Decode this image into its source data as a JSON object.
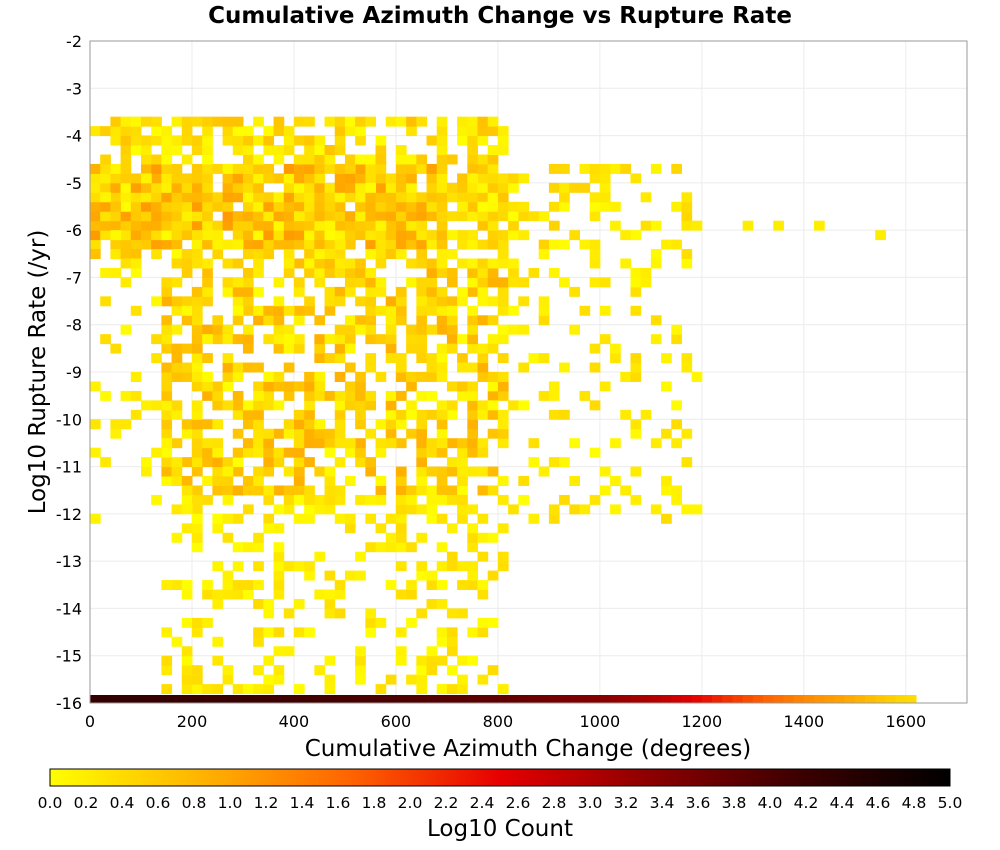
{
  "chart_data": {
    "type": "heatmap",
    "title": "Cumulative Azimuth Change vs Rupture Rate",
    "xlabel": "Cumulative Azimuth Change (degrees)",
    "ylabel": "Log10 Rupture Rate (/yr)",
    "xlim": [
      0,
      1720
    ],
    "ylim": [
      -16,
      -2
    ],
    "xticks": [
      0,
      200,
      400,
      600,
      800,
      1000,
      1200,
      1400,
      1600
    ],
    "yticks": [
      -2,
      -3,
      -4,
      -5,
      -6,
      -7,
      -8,
      -9,
      -10,
      -11,
      -12,
      -13,
      -14,
      -15,
      -16
    ],
    "grid": true,
    "x_bin_width": 20,
    "y_bin_height": 0.2,
    "colorbar": {
      "label": "Log10 Count",
      "range": [
        0,
        5
      ],
      "ticks": [
        "0.0",
        "0.2",
        "0.4",
        "0.6",
        "0.8",
        "1.0",
        "1.2",
        "1.4",
        "1.6",
        "1.8",
        "2.0",
        "2.2",
        "2.4",
        "2.6",
        "2.8",
        "3.0",
        "3.2",
        "3.4",
        "3.6",
        "3.8",
        "4.0",
        "4.2",
        "4.4",
        "4.6",
        "4.8",
        "5.0"
      ],
      "colors": [
        "#ffff00",
        "#ffb400",
        "#ff6400",
        "#e60000",
        "#8c0000",
        "#3c0000",
        "#000000"
      ]
    },
    "bottom_row": {
      "y": -16,
      "x_start": 0,
      "x_end": 1620,
      "profile": [
        [
          0,
          4.3
        ],
        [
          300,
          4.2
        ],
        [
          600,
          4.0
        ],
        [
          800,
          3.8
        ],
        [
          1000,
          3.4
        ],
        [
          1100,
          3.0
        ],
        [
          1200,
          2.4
        ],
        [
          1300,
          1.8
        ],
        [
          1400,
          1.3
        ],
        [
          1500,
          0.9
        ],
        [
          1600,
          0.4
        ]
      ]
    },
    "density_regions": [
      {
        "x_range": [
          0,
          700
        ],
        "y_range": [
          -6.4,
          -4.6
        ],
        "peak": 1.1,
        "fill": 0.85
      },
      {
        "x_range": [
          0,
          820
        ],
        "y_range": [
          -6.6,
          -3.6
        ],
        "peak": 0.7,
        "fill": 0.6
      },
      {
        "x_range": [
          700,
          1180
        ],
        "y_range": [
          -6.4,
          -4.6
        ],
        "peak": 0.5,
        "fill": 0.35
      },
      {
        "x_range": [
          140,
          820
        ],
        "y_range": [
          -11.6,
          -6.6
        ],
        "peak": 0.9,
        "fill": 0.55
      },
      {
        "x_range": [
          0,
          1180
        ],
        "y_range": [
          -12.2,
          -6.4
        ],
        "peak": 0.4,
        "fill": 0.18
      },
      {
        "x_range": [
          140,
          820
        ],
        "y_range": [
          -15.8,
          -11.6
        ],
        "peak": 0.4,
        "fill": 0.3
      }
    ],
    "outlier_points": [
      {
        "x": 1280,
        "y": -6.0,
        "value": 0.2
      },
      {
        "x": 1340,
        "y": -6.0,
        "value": 0.2
      },
      {
        "x": 1420,
        "y": -6.0,
        "value": 0.2
      },
      {
        "x": 1540,
        "y": -6.2,
        "value": 0.2
      },
      {
        "x": 1180,
        "y": -12.0,
        "value": 0.1
      },
      {
        "x": 1160,
        "y": -12.0,
        "value": 0.1
      },
      {
        "x": 1180,
        "y": -9.2,
        "value": 0.1
      },
      {
        "x": 1180,
        "y": -6.0,
        "value": 0.2
      }
    ]
  }
}
